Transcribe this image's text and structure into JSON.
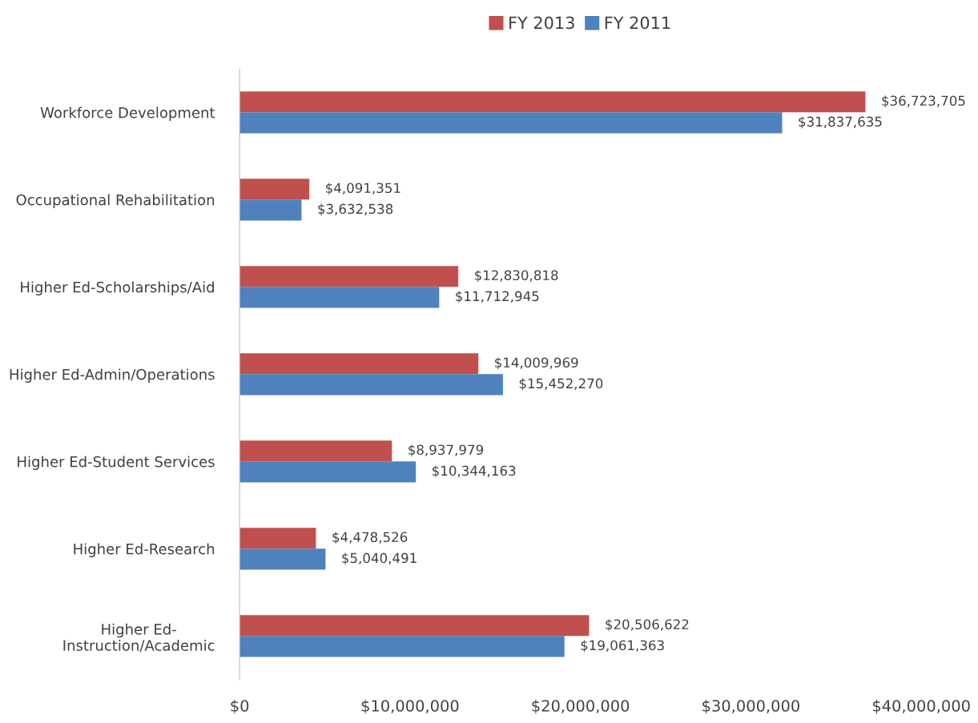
{
  "chart_data": {
    "type": "bar",
    "orientation": "horizontal",
    "categories": [
      "Workforce Development",
      "Occupational Rehabilitation",
      "Higher Ed-Scholarships/Aid",
      "Higher Ed-Admin/Operations",
      "Higher Ed-Student Services",
      "Higher Ed-Research",
      "Higher Ed-\nInstruction/Academic"
    ],
    "series": [
      {
        "name": "FY 2013",
        "color": "#c0504d",
        "values": [
          36723705,
          4091351,
          12830818,
          14009969,
          8937979,
          4478526,
          20506622
        ],
        "value_labels": [
          "$36,723,705",
          "$4,091,351",
          "$12,830,818",
          "$14,009,969",
          "$8,937,979",
          "$4,478,526",
          "$20,506,622"
        ]
      },
      {
        "name": "FY 2011",
        "color": "#4f81bd",
        "values": [
          31837635,
          3632538,
          11712945,
          15452270,
          10344163,
          5040491,
          19061363
        ],
        "value_labels": [
          "$31,837,635",
          "$3,632,538",
          "$11,712,945",
          "$15,452,270",
          "$10,344,163",
          "$5,040,491",
          "$19,061,363"
        ]
      }
    ],
    "xlim": [
      0,
      40000000
    ],
    "xticks": [
      {
        "value": 0,
        "label": "$0"
      },
      {
        "value": 10000000,
        "label": "$10,000,000"
      },
      {
        "value": 20000000,
        "label": "$20,000,000"
      },
      {
        "value": 30000000,
        "label": "$30,000,000"
      },
      {
        "value": 40000000,
        "label": "$40,000,000"
      }
    ],
    "grid": false,
    "legend": "top"
  }
}
